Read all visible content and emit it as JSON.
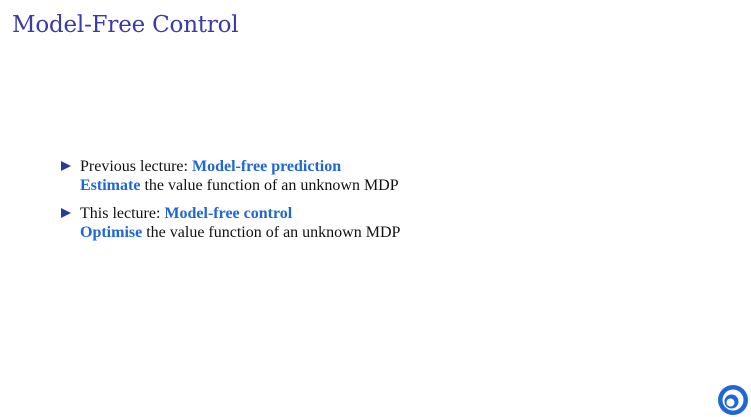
{
  "slide": {
    "title": "Model-Free Control"
  },
  "bullets": [
    {
      "prefix": "Previous lecture: ",
      "highlight": "Model-free prediction",
      "second_highlight": "Estimate",
      "second_rest": " the value function of an unknown MDP"
    },
    {
      "prefix": "This lecture: ",
      "highlight": "Model-free control",
      "second_highlight": "Optimise",
      "second_rest": " the value function of an unknown MDP"
    }
  ],
  "colors": {
    "title": "#3a3aa8",
    "highlight": "#1f66d6",
    "bullet_marker": "#2a3a9a",
    "logo": "#1f66d6"
  },
  "logo": {
    "icon": "deepmind-logo-icon"
  }
}
